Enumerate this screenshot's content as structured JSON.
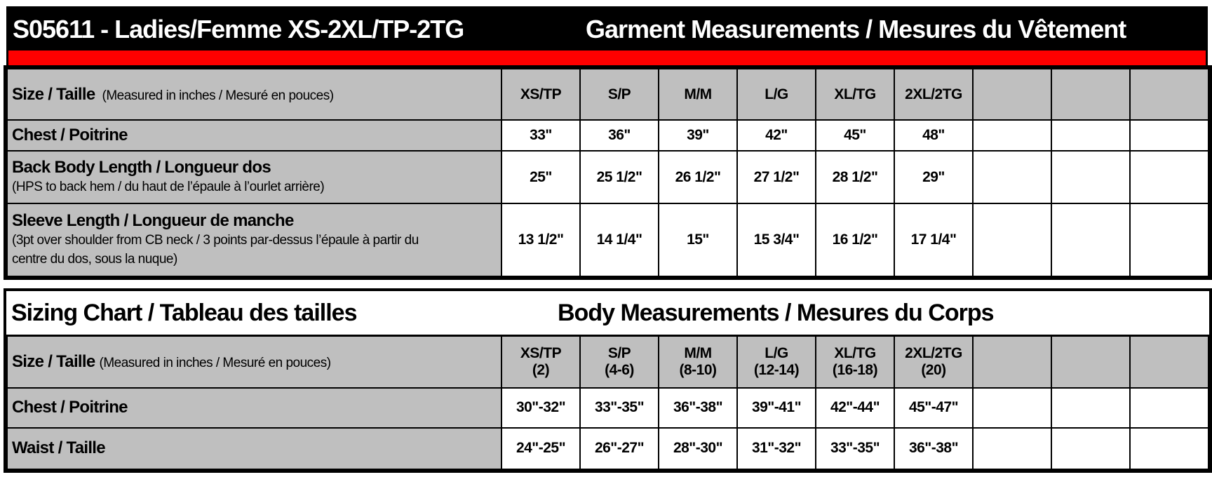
{
  "header": {
    "title": "S05611 - Ladies/Femme XS-2XL/TP-2TG",
    "subtitle": "Garment Measurements / Mesures du Vêtement"
  },
  "colors": {
    "header_bg": "#000000",
    "accent_bar": "#ff0000",
    "label_bg": "#bfbfbf"
  },
  "garment": {
    "size_label": "Size / Taille",
    "size_note": "(Measured in inches / Mesuré en pouces)",
    "sizes": [
      "XS/TP",
      "S/P",
      "M/M",
      "L/G",
      "XL/TG",
      "2XL/2TG"
    ],
    "rows": [
      {
        "label": "Chest / Poitrine",
        "note": "",
        "values": [
          "33\"",
          "36\"",
          "39\"",
          "42\"",
          "45\"",
          "48\""
        ]
      },
      {
        "label": "Back Body Length / Longueur dos",
        "note": "(HPS to back hem  / du haut de l’épaule à l’ourlet arrière)",
        "values": [
          "25\"",
          "25 1/2\"",
          "26 1/2\"",
          "27 1/2\"",
          "28 1/2\"",
          "29\""
        ]
      },
      {
        "label": "Sleeve Length / Longueur de manche",
        "note": "(3pt over shoulder from CB neck / 3 points par-dessus l’épaule à partir du centre du dos, sous la nuque)",
        "values": [
          "13 1/2\"",
          "14 1/4\"",
          "15\"",
          "15 3/4\"",
          "16 1/2\"",
          "17 1/4\""
        ]
      }
    ]
  },
  "body": {
    "title": "Sizing Chart / Tableau des tailles",
    "subtitle": "Body Measurements / Mesures du Corps",
    "size_label": "Size / Taille",
    "size_note": "(Measured in inches / Mesuré en pouces)",
    "sizes": [
      {
        "name": "XS/TP",
        "range": "(2)"
      },
      {
        "name": "S/P",
        "range": "(4-6)"
      },
      {
        "name": "M/M",
        "range": "(8-10)"
      },
      {
        "name": "L/G",
        "range": "(12-14)"
      },
      {
        "name": "XL/TG",
        "range": "(16-18)"
      },
      {
        "name": "2XL/2TG",
        "range": "(20)"
      }
    ],
    "rows": [
      {
        "label": "Chest / Poitrine",
        "values": [
          "30\"-32\"",
          "33\"-35\"",
          "36\"-38\"",
          "39\"-41\"",
          "42\"-44\"",
          "45\"-47\""
        ]
      },
      {
        "label": "Waist / Taille",
        "values": [
          "24\"-25\"",
          "26\"-27\"",
          "28\"-30\"",
          "31\"-32\"",
          "33\"-35\"",
          "36\"-38\""
        ]
      }
    ]
  }
}
